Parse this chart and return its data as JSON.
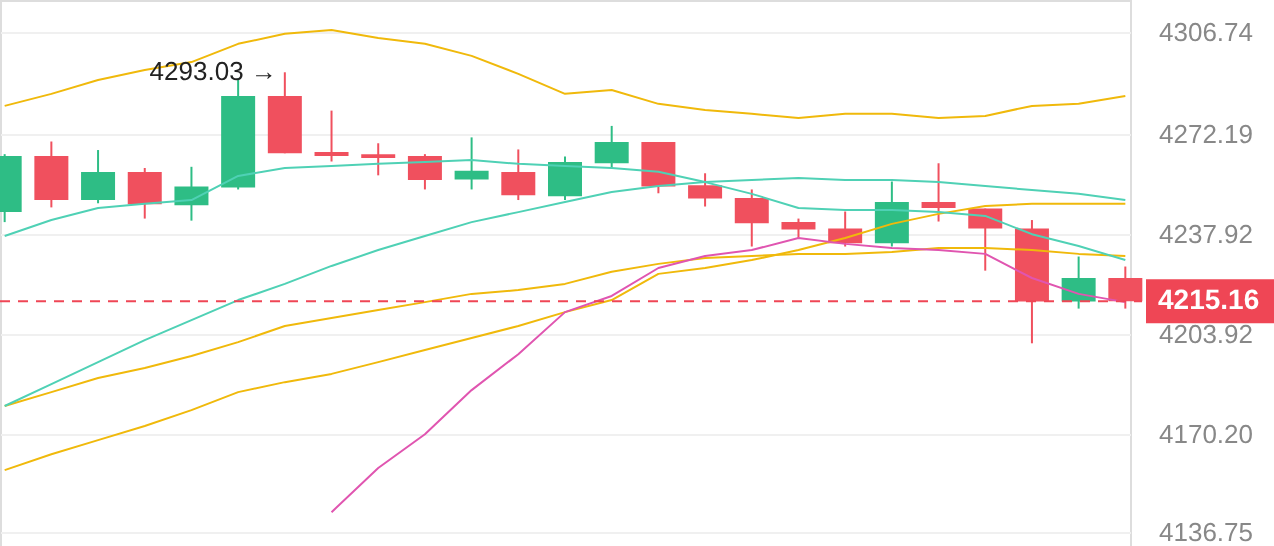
{
  "chart_data": {
    "type": "candlestick",
    "categories": [
      null,
      null,
      null,
      null,
      null,
      null,
      null,
      null,
      null,
      null,
      null,
      null,
      null,
      null,
      null,
      null,
      null,
      null,
      null,
      null,
      null,
      null,
      null,
      null,
      null
    ],
    "ohlc": [
      [
        4245.5,
        4265.2,
        4242.1,
        4264.6
      ],
      [
        4264.6,
        4269.5,
        4247.1,
        4249.6
      ],
      [
        4249.6,
        4266.6,
        4248.5,
        4259.1
      ],
      [
        4259.1,
        4260.5,
        4243.3,
        4248.2
      ],
      [
        4247.8,
        4260.9,
        4242.6,
        4254.2
      ],
      [
        4253.9,
        4291.0,
        4253.2,
        4285.0
      ],
      [
        4285.0,
        4293.03,
        4265.5,
        4265.5
      ],
      [
        4265.9,
        4280.0,
        4262.7,
        4264.6
      ],
      [
        4265.2,
        4268.9,
        4258.0,
        4263.9
      ],
      [
        4264.6,
        4265.2,
        4253.2,
        4256.4
      ],
      [
        4256.6,
        4270.9,
        4253.2,
        4259.6
      ],
      [
        4259.1,
        4266.8,
        4249.6,
        4251.2
      ],
      [
        4250.9,
        4264.4,
        4249.6,
        4262.5
      ],
      [
        4262.1,
        4274.8,
        4260.3,
        4269.3
      ],
      [
        4269.3,
        4269.3,
        4251.9,
        4254.2
      ],
      [
        4254.6,
        4258.7,
        4247.4,
        4250.1
      ],
      [
        4250.3,
        4253.2,
        4233.8,
        4241.7
      ],
      [
        4242.1,
        4243.3,
        4236.7,
        4239.6
      ],
      [
        4239.9,
        4245.7,
        4233.8,
        4234.9
      ],
      [
        4234.9,
        4255.9,
        4233.8,
        4248.9
      ],
      [
        4248.9,
        4262.1,
        4242.3,
        4246.9
      ],
      [
        4246.7,
        4246.7,
        4225.6,
        4239.9
      ],
      [
        4239.9,
        4242.8,
        4200.9,
        4215.1
      ],
      [
        4215.1,
        4230.4,
        4212.7,
        4223.1
      ],
      [
        4223.1,
        4227.0,
        4212.7,
        4215.16
      ]
    ],
    "colors": [
      "#2ebd85",
      "#f0505e",
      "#2ebd85",
      "#f0505e",
      "#2ebd85",
      "#2ebd85",
      "#f0505e",
      "#f0505e",
      "#f0505e",
      "#f0505e",
      "#2ebd85",
      "#f0505e",
      "#2ebd85",
      "#2ebd85",
      "#f0505e",
      "#f0505e",
      "#f0505e",
      "#f0505e",
      "#f0505e",
      "#2ebd85",
      "#f0505e",
      "#f0505e",
      "#f0505e",
      "#2ebd85",
      "#f0505e"
    ],
    "series": [
      {
        "type": "line",
        "color": "#f0b90b",
        "values": [
          4281.6,
          4285.7,
          4290.4,
          4293.8,
          4296.5,
          4302.7,
          4306.1,
          4307.4,
          4304.7,
          4302.7,
          4298.6,
          4292.5,
          4285.7,
          4287.0,
          4282.3,
          4280.2,
          4278.9,
          4277.5,
          4278.9,
          4278.9,
          4277.5,
          4278.2,
          4281.6,
          4282.3,
          4285.0
        ]
      },
      {
        "type": "line",
        "color": "#f0b90b",
        "values": [
          4179.6,
          4184.3,
          4189.1,
          4192.5,
          4196.6,
          4201.3,
          4206.8,
          4209.5,
          4212.2,
          4214.9,
          4217.7,
          4219.0,
          4221.1,
          4225.2,
          4227.9,
          4229.9,
          4230.6,
          4231.3,
          4231.3,
          4231.9,
          4233.3,
          4233.3,
          4232.6,
          4231.3,
          4230.6
        ]
      },
      {
        "type": "line",
        "color": "#f0b90b",
        "values": [
          4157.8,
          4163.2,
          4168.0,
          4172.8,
          4178.2,
          4184.3,
          4187.7,
          4190.5,
          4194.5,
          4198.6,
          4202.7,
          4206.8,
          4211.5,
          4215.6,
          4224.5,
          4226.5,
          4229.2,
          4232.6,
          4236.7,
          4241.5,
          4244.9,
          4247.6,
          4248.3,
          4248.3,
          4248.3
        ]
      },
      {
        "type": "line",
        "color": "#4fd1b5",
        "values": [
          4179.6,
          4187.0,
          4194.5,
          4202.0,
          4208.8,
          4215.6,
          4221.1,
          4227.2,
          4232.6,
          4237.4,
          4242.1,
          4245.5,
          4248.9,
          4252.3,
          4254.4,
          4255.7,
          4256.4,
          4257.1,
          4256.4,
          4256.4,
          4255.7,
          4254.4,
          4253.0,
          4251.7,
          4249.6
        ]
      },
      {
        "type": "line",
        "color": "#4fd1b5",
        "values": [
          4237.4,
          4242.8,
          4246.9,
          4248.3,
          4249.6,
          4257.8,
          4260.5,
          4261.2,
          4261.9,
          4262.5,
          4263.2,
          4261.9,
          4261.2,
          4260.5,
          4259.2,
          4255.7,
          4251.7,
          4246.9,
          4246.2,
          4246.2,
          4245.5,
          4244.2,
          4238.0,
          4234.0,
          4229.2
        ]
      },
      {
        "type": "line",
        "color": "#e055b0",
        "values": [
          null,
          null,
          null,
          null,
          null,
          null,
          null,
          4143.5,
          4158.5,
          4170.0,
          4185.0,
          4197.2,
          4211.5,
          4217.0,
          4226.5,
          4230.6,
          4232.6,
          4236.7,
          4234.7,
          4233.3,
          4232.6,
          4231.3,
          4223.1,
          4217.7,
          4214.9
        ]
      }
    ],
    "ylim": [
      4132.0,
      4317.6
    ],
    "yticks": [
      4306.74,
      4272.19,
      4237.92,
      4203.92,
      {
        "value": 4170.2,
        "label": "4170.20"
      },
      4136.75
    ],
    "grid": "y",
    "ref_lines": [
      {
        "axis": "y",
        "value": 4215.16,
        "label": "4215.16",
        "color": "#ef4655",
        "line_style": "dashed"
      }
    ],
    "annotations": [
      "4293.03 →"
    ]
  }
}
